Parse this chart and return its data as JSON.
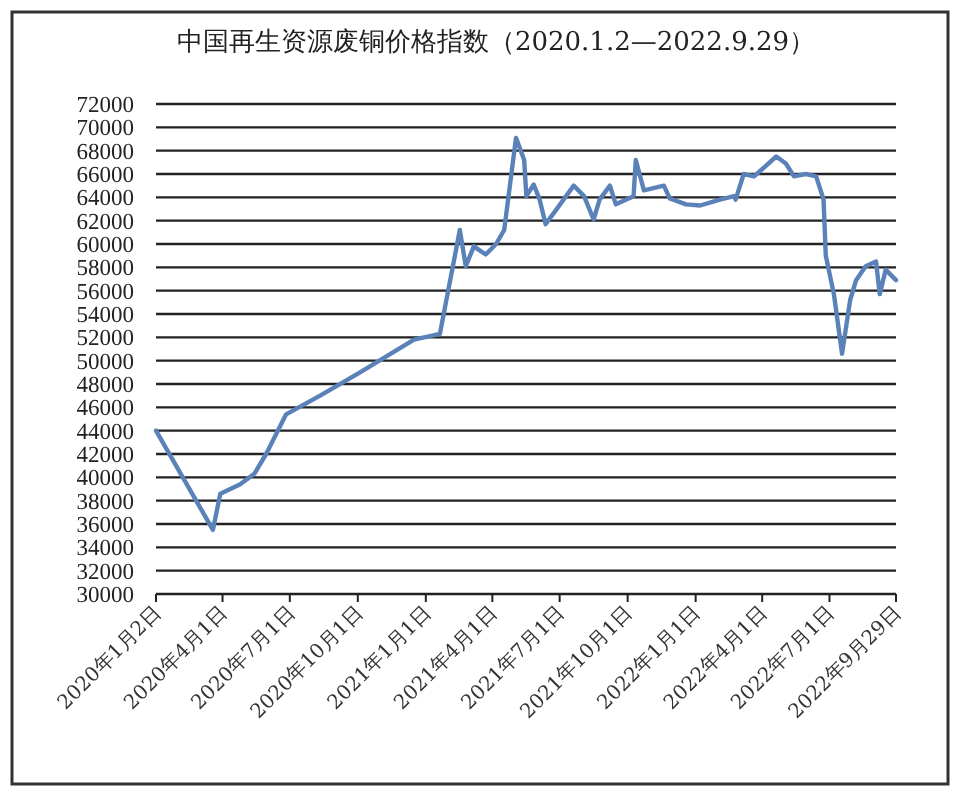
{
  "chart_data": {
    "type": "line",
    "title": "中国再生资源废铜价格指数（2020.1.2—2022.9.29）",
    "x": [
      "2020-01-02",
      "2020-03-19",
      "2020-03-29",
      "2020-04-25",
      "2020-05-14",
      "2020-05-30",
      "2020-06-26",
      "2020-08-11",
      "2020-10-04",
      "2020-12-16",
      "2021-01-20",
      "2021-02-16",
      "2021-02-24",
      "2021-03-07",
      "2021-03-23",
      "2021-04-06",
      "2021-04-17",
      "2021-05-03",
      "2021-05-14",
      "2021-05-17",
      "2021-05-27",
      "2021-06-04",
      "2021-06-12",
      "2021-06-26",
      "2021-07-20",
      "2021-08-03",
      "2021-08-16",
      "2021-08-24",
      "2021-09-07",
      "2021-09-15",
      "2021-10-09",
      "2021-10-12",
      "2021-10-23",
      "2021-11-19",
      "2021-11-27",
      "2021-12-19",
      "2022-01-07",
      "2022-02-03",
      "2022-02-22",
      "2022-02-24",
      "2022-03-07",
      "2022-03-21",
      "2022-04-06",
      "2022-04-20",
      "2022-05-03",
      "2022-05-14",
      "2022-05-30",
      "2022-06-13",
      "2022-06-23",
      "2022-06-26",
      "2022-07-07",
      "2022-07-18",
      "2022-07-29",
      "2022-08-06",
      "2022-08-19",
      "2022-09-02",
      "2022-09-07",
      "2022-09-15",
      "2022-09-29"
    ],
    "values": [
      44000,
      35500,
      38600,
      39400,
      40300,
      42000,
      45400,
      47000,
      49000,
      51800,
      52300,
      61200,
      58100,
      59800,
      59100,
      60000,
      61200,
      69100,
      67200,
      64100,
      65100,
      63800,
      61700,
      62900,
      65000,
      64100,
      62100,
      63800,
      65000,
      63400,
      64100,
      67200,
      64600,
      65000,
      63900,
      63400,
      63300,
      63800,
      64100,
      63800,
      66000,
      65800,
      66700,
      67500,
      66900,
      65800,
      66000,
      65800,
      63800,
      59000,
      55700,
      50600,
      55200,
      56900,
      58100,
      58500,
      55700,
      57800,
      56900
    ],
    "color": "#5a82b8",
    "xlim": [
      "2020-01-02",
      "2022-09-29"
    ],
    "ylim": [
      30000,
      72000
    ],
    "yticks": [
      30000,
      32000,
      34000,
      36000,
      38000,
      40000,
      42000,
      44000,
      46000,
      48000,
      50000,
      52000,
      54000,
      56000,
      58000,
      60000,
      62000,
      64000,
      66000,
      68000,
      70000,
      72000
    ],
    "xticks": [
      {
        "value": "2020-01-02",
        "label": "2020年1月2日"
      },
      {
        "value": "2020-04-01",
        "label": "2020年4月1日"
      },
      {
        "value": "2020-07-01",
        "label": "2020年7月1日"
      },
      {
        "value": "2020-10-01",
        "label": "2020年10月1日"
      },
      {
        "value": "2021-01-01",
        "label": "2021年1月1日"
      },
      {
        "value": "2021-04-01",
        "label": "2021年4月1日"
      },
      {
        "value": "2021-07-01",
        "label": "2021年7月1日"
      },
      {
        "value": "2021-10-01",
        "label": "2021年10月1日"
      },
      {
        "value": "2022-01-01",
        "label": "2022年1月1日"
      },
      {
        "value": "2022-04-01",
        "label": "2022年4月1日"
      },
      {
        "value": "2022-07-01",
        "label": "2022年7月1日"
      },
      {
        "value": "2022-09-29",
        "label": "2022年9月29日"
      }
    ],
    "grid": "y"
  }
}
